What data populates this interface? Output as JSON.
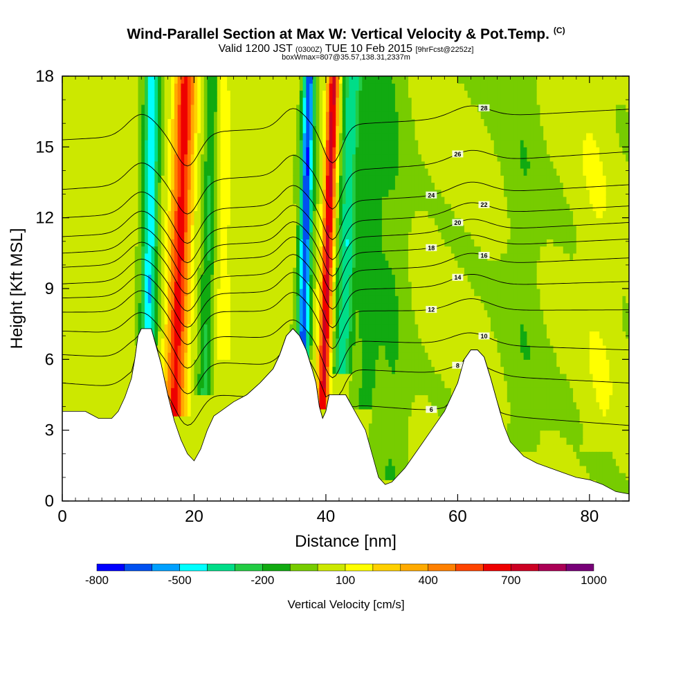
{
  "header": {
    "title": "Wind-Parallel Section at Max W: Vertical Velocity & Pot.Temp.",
    "copyright": "(C)",
    "valid_prefix": "Valid 1200 JST",
    "valid_utc": "(0300Z)",
    "valid_date": "TUE 10 Feb 2015",
    "forecast": "[9hrFcst@2252z]",
    "box_info": "boxWmax=807@35.57,138.31,2337m"
  },
  "colors": {
    "bins": [
      "#0000ff",
      "#0050f0",
      "#00a0ff",
      "#00ffff",
      "#00dd88",
      "#22cc44",
      "#11aa11",
      "#77cc00",
      "#cce800",
      "#ffff00",
      "#ffd000",
      "#ffaa00",
      "#ff8000",
      "#ff4400",
      "#ee0000",
      "#cc0022",
      "#aa0055",
      "#770077"
    ],
    "terrain": "#ffffff"
  },
  "chart_data": {
    "type": "heatmap",
    "xlabel": "Distance [nm]",
    "ylabel": "Height [Kft MSL]",
    "xlim": [
      0,
      86
    ],
    "ylim": [
      0,
      18
    ],
    "xticks": [
      0,
      20,
      40,
      60,
      80
    ],
    "yticks": [
      0,
      3,
      6,
      9,
      12,
      15,
      18
    ],
    "colorbar": {
      "label": "Vertical Velocity [cm/s]",
      "min": -800,
      "max": 1000,
      "step": 100,
      "tick_values": [
        -800,
        -500,
        -200,
        100,
        400,
        700,
        1000
      ]
    },
    "terrain_height_kft": [
      [
        0,
        3.8
      ],
      [
        3.5,
        3.8
      ],
      [
        5.5,
        3.5
      ],
      [
        7.5,
        3.5
      ],
      [
        8.5,
        3.8
      ],
      [
        9.5,
        4.4
      ],
      [
        10.5,
        5.2
      ],
      [
        11,
        6.0
      ],
      [
        11.5,
        7.0
      ],
      [
        12,
        7.3
      ],
      [
        13.5,
        7.3
      ],
      [
        14,
        6.8
      ],
      [
        15,
        5.8
      ],
      [
        16,
        4.5
      ],
      [
        17,
        3.4
      ],
      [
        18,
        2.6
      ],
      [
        19,
        2.0
      ],
      [
        20,
        1.7
      ],
      [
        21,
        2.2
      ],
      [
        22,
        3.0
      ],
      [
        23,
        3.6
      ],
      [
        24,
        3.8
      ],
      [
        26,
        4.2
      ],
      [
        28,
        4.5
      ],
      [
        30,
        5.0
      ],
      [
        32,
        5.6
      ],
      [
        33,
        6.2
      ],
      [
        34,
        7.0
      ],
      [
        35,
        7.3
      ],
      [
        36,
        7.0
      ],
      [
        37,
        6.4
      ],
      [
        38,
        5.5
      ],
      [
        38.5,
        5.0
      ],
      [
        39,
        4.0
      ],
      [
        39.5,
        3.5
      ],
      [
        40,
        3.8
      ],
      [
        40.5,
        4.5
      ],
      [
        43,
        4.5
      ],
      [
        44,
        4.0
      ],
      [
        45,
        3.5
      ],
      [
        46,
        3.0
      ],
      [
        47,
        2.0
      ],
      [
        48,
        1.0
      ],
      [
        49,
        0.7
      ],
      [
        50,
        0.8
      ],
      [
        52,
        1.4
      ],
      [
        54,
        2.2
      ],
      [
        56,
        3.0
      ],
      [
        58,
        3.8
      ],
      [
        60,
        5.0
      ],
      [
        61,
        6.0
      ],
      [
        62,
        6.4
      ],
      [
        63,
        6.4
      ],
      [
        64,
        6.1
      ],
      [
        65,
        5.2
      ],
      [
        66,
        4.2
      ],
      [
        67,
        3.2
      ],
      [
        68,
        2.5
      ],
      [
        70,
        1.9
      ],
      [
        72,
        1.6
      ],
      [
        74,
        1.4
      ],
      [
        76,
        1.2
      ],
      [
        78,
        1.0
      ],
      [
        80,
        0.9
      ],
      [
        82,
        0.7
      ],
      [
        84,
        0.4
      ],
      [
        86,
        0.3
      ]
    ],
    "theta_contours": [
      {
        "label": "6",
        "base_kft": 5.0,
        "top_kft": 3.2
      },
      {
        "label": "8",
        "base_kft": 6.2,
        "top_kft": 5.0
      },
      {
        "label": "10",
        "base_kft": 7.2,
        "top_kft": 6.4
      },
      {
        "label": "12",
        "base_kft": 8.0,
        "top_kft": 8.1
      },
      {
        "label": "14",
        "base_kft": 8.6,
        "top_kft": 9.3
      },
      {
        "label": "16",
        "base_kft": 9.2,
        "top_kft": 10.3
      },
      {
        "label": "18",
        "base_kft": 9.9,
        "top_kft": 11.1
      },
      {
        "label": "20",
        "base_kft": 10.5,
        "top_kft": 11.8
      },
      {
        "label": "22",
        "base_kft": 11.2,
        "top_kft": 12.5
      },
      {
        "label": "24",
        "base_kft": 12.0,
        "top_kft": 13.4
      },
      {
        "label": "26",
        "base_kft": 13.2,
        "top_kft": 14.8
      },
      {
        "label": "28",
        "base_kft": 15.3,
        "top_kft": 16.6
      }
    ]
  }
}
